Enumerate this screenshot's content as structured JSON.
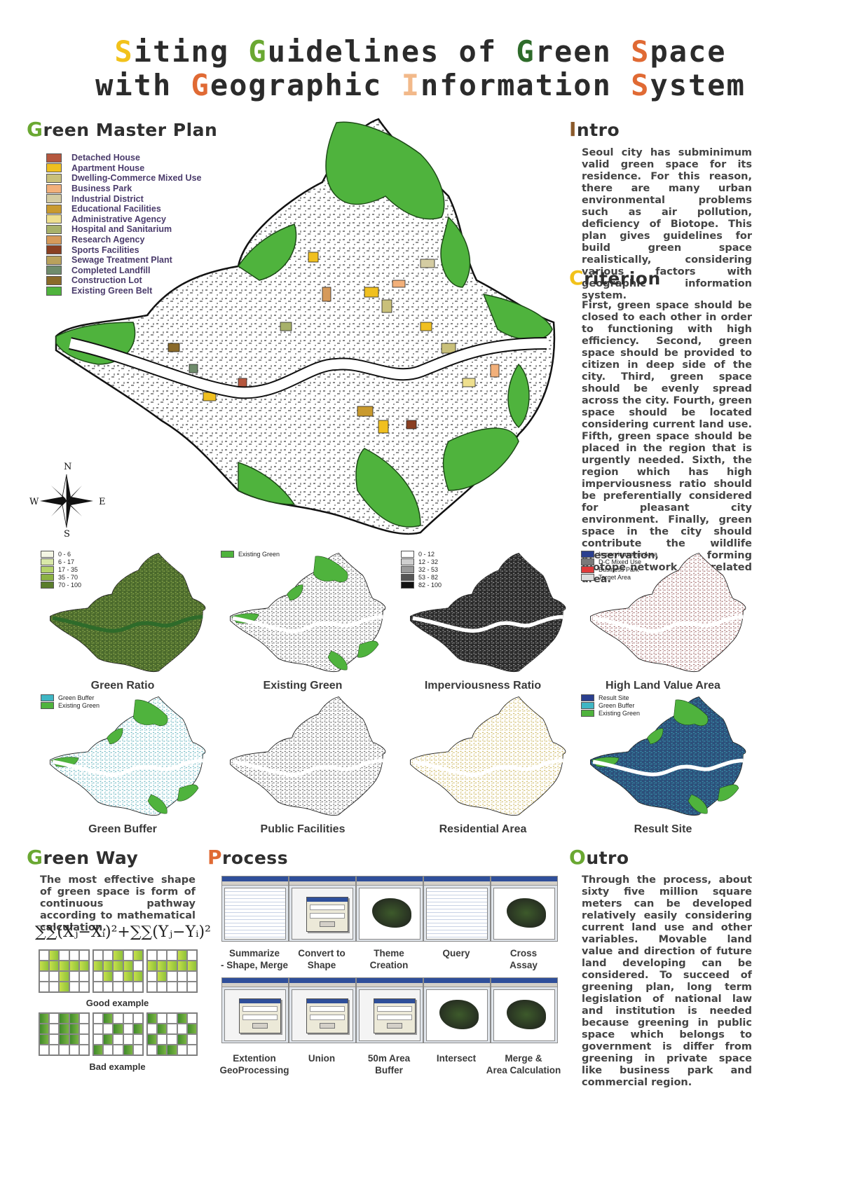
{
  "colors": {
    "yellow": "#f2c21b",
    "green": "#6aa832",
    "dark_green": "#2e6b2a",
    "orange": "#e06a34",
    "light_orange": "#f2b98a",
    "brown": "#8b5a2b"
  },
  "title": {
    "line1": [
      {
        "cap": "S",
        "rest": "iting ",
        "color": "#f2c21b"
      },
      {
        "cap": "G",
        "rest": "uidelines of ",
        "color": "#6aa832"
      },
      {
        "cap": "G",
        "rest": "reen ",
        "color": "#2e6b2a"
      },
      {
        "cap": "S",
        "rest": "pace",
        "color": "#e06a34"
      }
    ],
    "line2": [
      {
        "cap": "",
        "rest": "with ",
        "color": "#333333"
      },
      {
        "cap": "G",
        "rest": "eographic ",
        "color": "#e06a34"
      },
      {
        "cap": "I",
        "rest": "nformation ",
        "color": "#f2b98a"
      },
      {
        "cap": "S",
        "rest": "ystem",
        "color": "#e06a34"
      }
    ]
  },
  "master_plan": {
    "heading_first": "G",
    "heading_rest": "reen Master Plan",
    "legend": [
      {
        "label": "Detached House",
        "color": "#b5573e"
      },
      {
        "label": "Apartment House",
        "color": "#f0c020"
      },
      {
        "label": "Dwelling-Commerce Mixed Use",
        "color": "#c9c07a"
      },
      {
        "label": "Business Park",
        "color": "#f2b07a"
      },
      {
        "label": "Industrial District",
        "color": "#d4cca2"
      },
      {
        "label": "Educational Facilities",
        "color": "#c99a2e"
      },
      {
        "label": "Administrative Agency",
        "color": "#eedf8e"
      },
      {
        "label": "Hospital and Sanitarium",
        "color": "#a7b16a"
      },
      {
        "label": "Research Agency",
        "color": "#d69a5a"
      },
      {
        "label": "Sports Facilities",
        "color": "#8a3f22"
      },
      {
        "label": "Sewage Treatment Plant",
        "color": "#b9a15c"
      },
      {
        "label": "Completed Landfill",
        "color": "#6f8c6c"
      },
      {
        "label": "Construction Lot",
        "color": "#8a6a2a"
      },
      {
        "label": "Existing Green Belt",
        "color": "#4fb33d"
      }
    ],
    "compass": {
      "n": "N",
      "s": "S",
      "e": "E",
      "w": "W"
    }
  },
  "intro": {
    "heading_first": "I",
    "heading_rest": "ntro",
    "text": "Seoul city has subminimum valid green space for its residence. For this reason, there are many urban environmental problems such as air pollution, deficiency of Biotope. This plan gives guidelines for build green space realistically, considering various factors with geographic information system."
  },
  "criterion": {
    "heading_first": "C",
    "heading_rest": "riterion",
    "text": "First, green space should be closed to each other in order to functioning with high efficiency. Second, green space should be provided to citizen in deep side of the city. Third, green space should be evenly spread across the city. Fourth, green space should be located considering current land use. Fifth, green space should be placed in the region that is urgently needed. Sixth, the region which has high imperviousness ratio should be preferentially considered for pleasant city environment. Finally, green space in the city should contribute the wildlife preservation, forming Biotope network with related area."
  },
  "panels": [
    {
      "caption": "Green Ratio",
      "style": "ratio",
      "legend": [
        {
          "label": "0 - 6",
          "color": "#f4f6e4"
        },
        {
          "label": "6 - 17",
          "color": "#d9e8a8"
        },
        {
          "label": "17 - 35",
          "color": "#b4d36a"
        },
        {
          "label": "35 - 70",
          "color": "#8cb243"
        },
        {
          "label": "70 - 100",
          "color": "#5a7d2c"
        }
      ]
    },
    {
      "caption": "Existing Green",
      "style": "green",
      "legend": [
        {
          "label": "Existing Green",
          "color": "#4fb33d"
        }
      ]
    },
    {
      "caption": "Imperviousness Ratio",
      "style": "impervious",
      "legend": [
        {
          "label": "0 - 12",
          "color": "#ffffff"
        },
        {
          "label": "12 - 32",
          "color": "#cfcfcf"
        },
        {
          "label": "32 - 53",
          "color": "#9a9a9a"
        },
        {
          "label": "53 - 82",
          "color": "#555555"
        },
        {
          "label": "82 - 100",
          "color": "#111111"
        }
      ]
    },
    {
      "caption": "High Land Value Area",
      "style": "landvalue",
      "legend": [
        {
          "label": "Imperviousness Area",
          "color": "#2a3f8f"
        },
        {
          "label": "D-C Mixed Use",
          "color": "#7a7a7a"
        },
        {
          "label": "Business Park",
          "color": "#e03a3a"
        },
        {
          "label": "Target Area",
          "color": "#dcdcdc"
        }
      ]
    },
    {
      "caption": "Green Buffer",
      "style": "buffer",
      "legend": [
        {
          "label": "Green Buffer",
          "color": "#3fb6c4"
        },
        {
          "label": "Existing Green",
          "color": "#4fb33d"
        }
      ]
    },
    {
      "caption": "Public Facilities",
      "style": "public",
      "legend": []
    },
    {
      "caption": "Residential Area",
      "style": "residential",
      "legend": []
    },
    {
      "caption": "Result Site",
      "style": "result",
      "legend": [
        {
          "label": "Result Site",
          "color": "#2a3f8f"
        },
        {
          "label": "Green Buffer",
          "color": "#3fb6c4"
        },
        {
          "label": "Existing Green",
          "color": "#4fb33d"
        }
      ]
    }
  ],
  "green_way": {
    "heading_first": "G",
    "heading_rest": "reen Way",
    "text": "The most effective shape of green space is form of continuous pathway according to mathematical calculation.",
    "formula": "∑∑(Xⱼ−Xᵢ)²+∑∑(Yⱼ−Yᵢ)²",
    "good_label": "Good example",
    "bad_label": "Bad example"
  },
  "process": {
    "heading_first": "P",
    "heading_rest": "rocess",
    "row1": [
      "Summarize\n- Shape, Merge",
      "Convert to\nShape",
      "Theme\nCreation",
      "Query",
      "Cross\nAssay"
    ],
    "row2": [
      "Extention\nGeoProcessing",
      "Union",
      "50m Area\nBuffer",
      "Intersect",
      "Merge &\nArea Calculation"
    ]
  },
  "outro": {
    "heading_first": "O",
    "heading_rest": "utro",
    "text": "Through the process, about sixty five million square meters can be developed relatively easily considering current land use and other variables. Movable land value and direction of future land developing can be considered. To succeed of greening plan, long term legislation of national law and institution is needed because greening in public space which belongs to government is differ from greening in private space like business park and commercial region."
  }
}
